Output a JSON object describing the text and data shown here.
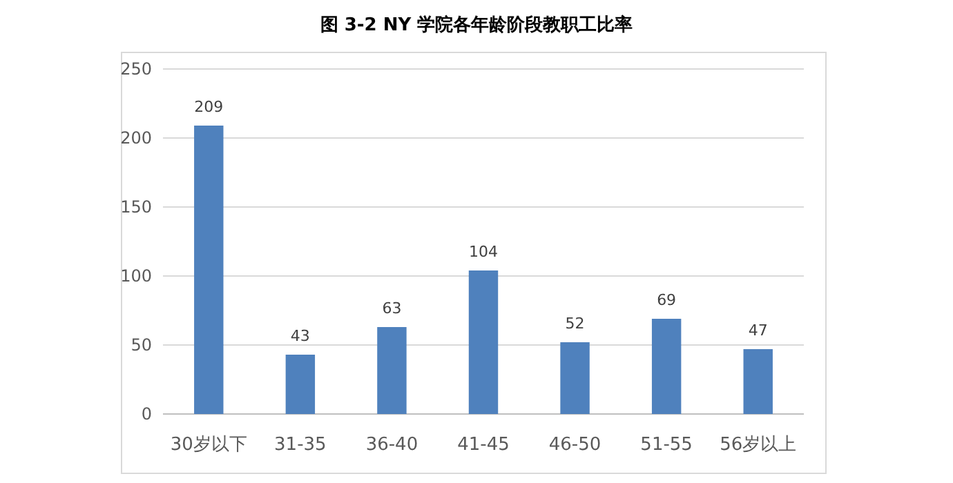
{
  "chart_data": {
    "type": "bar",
    "title": "图 3-2 NY 学院各年龄阶段教职工比率",
    "categories": [
      "30岁以下",
      "31-35",
      "36-40",
      "41-45",
      "46-50",
      "51-55",
      "56岁以上"
    ],
    "values": [
      209,
      43,
      63,
      104,
      52,
      69,
      47
    ],
    "color": "#4f81bd",
    "ylim": [
      0,
      250
    ],
    "yticks": [
      0,
      50,
      100,
      150,
      200,
      250
    ],
    "grid": "y",
    "data_labels": true
  }
}
